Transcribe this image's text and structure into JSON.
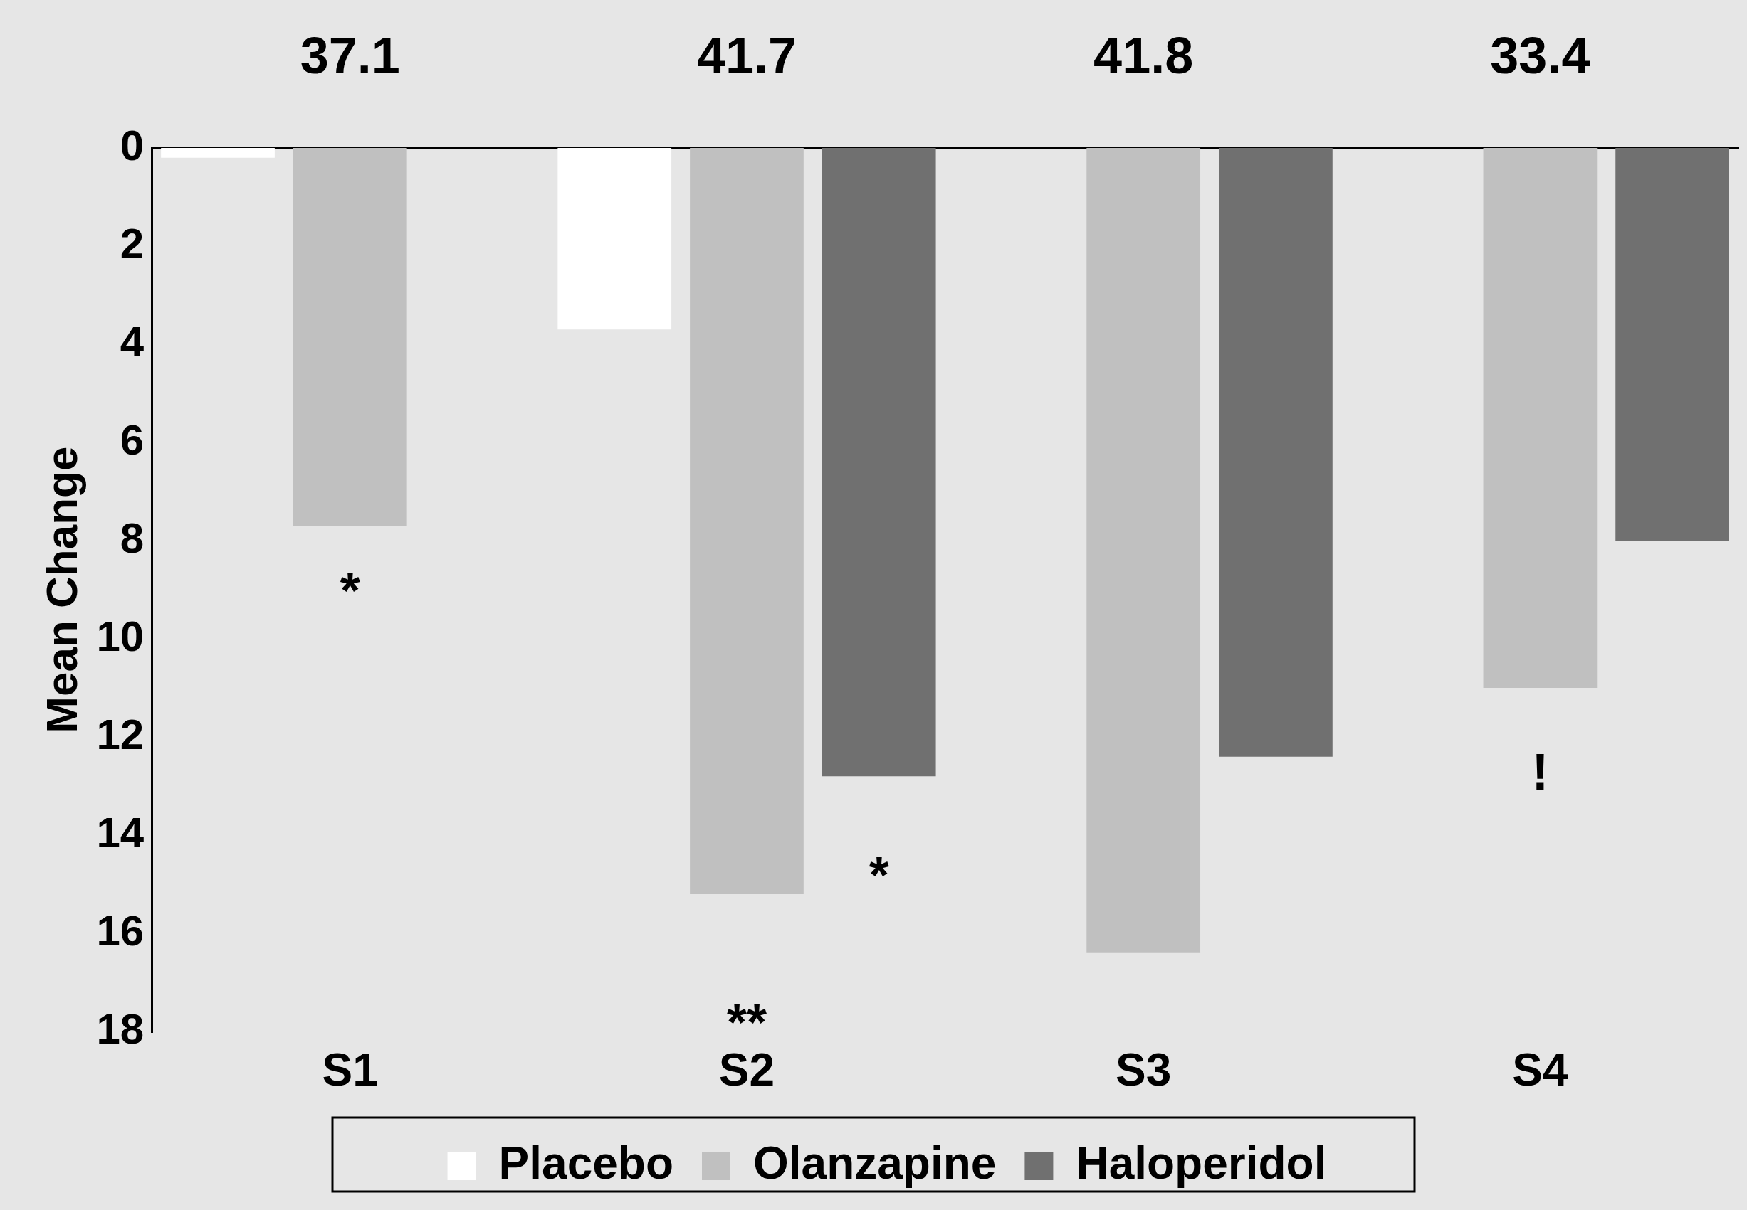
{
  "chart_data": {
    "type": "bar",
    "ylabel": "Mean Change",
    "categories": [
      "S1",
      "S2",
      "S3",
      "S4"
    ],
    "series": [
      {
        "name": "Placebo",
        "color": "#ffffff",
        "values": [
          0.2,
          3.7,
          null,
          null
        ]
      },
      {
        "name": "Olanzapine",
        "color": "#c0c0c0",
        "values": [
          7.7,
          15.2,
          16.4,
          11.0
        ]
      },
      {
        "name": "Haloperidol",
        "color": "#707070",
        "values": [
          null,
          12.8,
          12.4,
          8.0
        ]
      }
    ],
    "ylim": [
      18,
      0
    ],
    "yticks": [
      0,
      2,
      4,
      6,
      8,
      10,
      12,
      14,
      16,
      18
    ],
    "grid": false,
    "legend": "bottom",
    "annotations": [
      "37.1",
      "41.7",
      "41.8",
      "33.4",
      "*",
      "**",
      "*",
      "!"
    ]
  }
}
